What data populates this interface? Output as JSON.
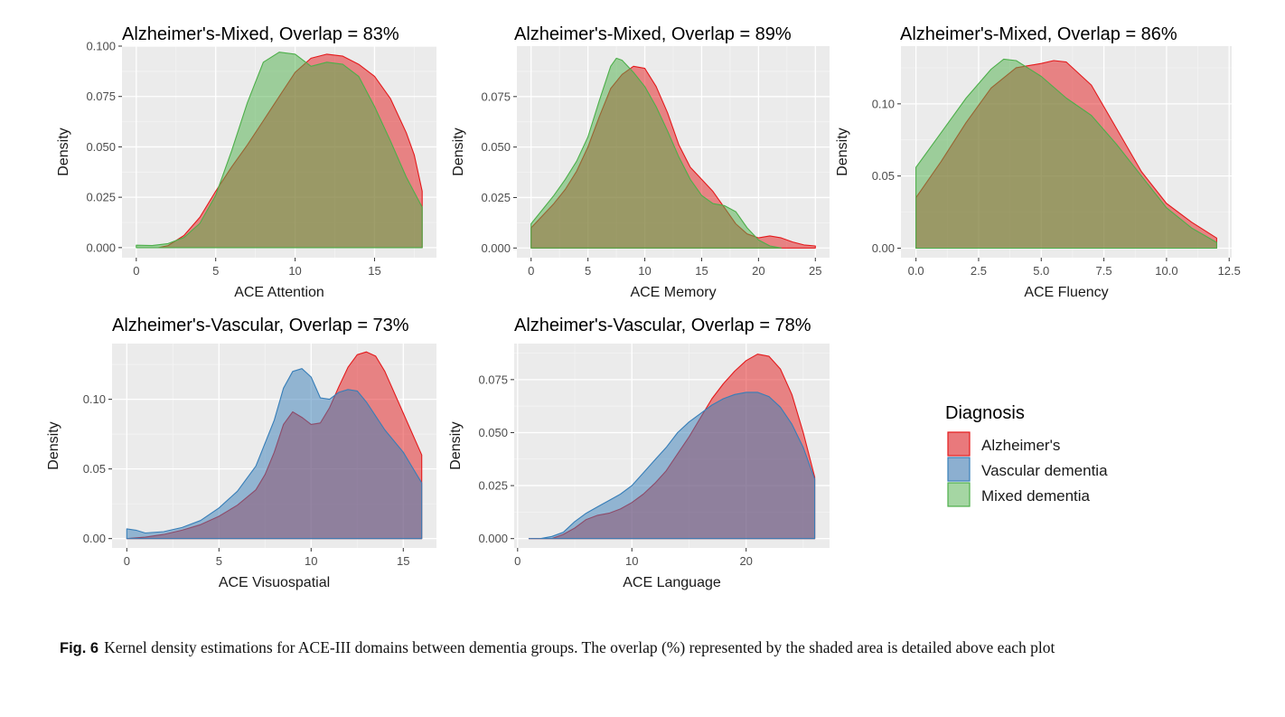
{
  "figure": {
    "caption_label": "Fig. 6",
    "caption_text": "Kernel density estimations for ACE-III domains between dementia groups. The overlap (%) represented by the shaded area is detailed above each plot"
  },
  "legend": {
    "title": "Diagnosis",
    "items": [
      {
        "label": "Alzheimer's",
        "fill": "#e9797c",
        "stroke": "#e41a1c"
      },
      {
        "label": "Vascular dementia",
        "fill": "#8cafd0",
        "stroke": "#377eb8"
      },
      {
        "label": "Mixed dementia",
        "fill": "#a5d6a3",
        "stroke": "#4daf4a"
      }
    ]
  },
  "colors": {
    "panel_bg": "#ebebeb",
    "grid_major": "#ffffff",
    "alz_fill": "#e41a1c",
    "alz_stroke": "#e41a1c",
    "vasc_fill": "#377eb8",
    "vasc_stroke": "#377eb8",
    "mixed_fill": "#4daf4a",
    "mixed_stroke": "#4daf4a"
  },
  "chart_data": [
    {
      "type": "area",
      "title": "Alzheimer's-Mixed, Overlap = 83%",
      "xlabel": "ACE Attention",
      "ylabel": "Density",
      "xlim": [
        -0.9,
        18.9
      ],
      "ylim": [
        -0.005,
        0.1
      ],
      "xticks": [
        0,
        5,
        10,
        15
      ],
      "xtick_labels": [
        "0",
        "5",
        "10",
        "15"
      ],
      "yticks": [
        0,
        0.025,
        0.05,
        0.075,
        0.1
      ],
      "ytick_labels": [
        "0.000",
        "0.025",
        "0.050",
        "0.075",
        "0.100"
      ],
      "grid": true,
      "series": [
        {
          "name": "Alzheimer's",
          "group": "alz",
          "x": [
            1.4,
            2,
            3,
            4,
            5,
            6,
            7,
            8,
            9,
            10,
            11,
            12,
            13,
            14,
            15,
            16,
            17,
            17.5,
            18
          ],
          "y": [
            0,
            0.001,
            0.006,
            0.015,
            0.028,
            0.04,
            0.051,
            0.063,
            0.075,
            0.087,
            0.094,
            0.096,
            0.095,
            0.091,
            0.085,
            0.074,
            0.057,
            0.046,
            0.028
          ]
        },
        {
          "name": "Mixed dementia",
          "group": "mixed",
          "x": [
            0,
            1,
            2,
            3,
            4,
            5,
            6,
            7,
            8,
            9,
            10,
            11,
            12,
            13,
            14,
            15,
            16,
            17,
            18
          ],
          "y": [
            0.0012,
            0.001,
            0.002,
            0.005,
            0.012,
            0.026,
            0.048,
            0.072,
            0.092,
            0.097,
            0.096,
            0.09,
            0.092,
            0.091,
            0.085,
            0.07,
            0.053,
            0.035,
            0.02
          ]
        }
      ]
    },
    {
      "type": "area",
      "title": "Alzheimer's-Mixed, Overlap = 89%",
      "xlabel": "ACE Memory",
      "ylabel": "Density",
      "xlim": [
        -1.25,
        26.25
      ],
      "ylim": [
        -0.0048,
        0.1
      ],
      "xticks": [
        0,
        5,
        10,
        15,
        20,
        25
      ],
      "xtick_labels": [
        "0",
        "5",
        "10",
        "15",
        "20",
        "25"
      ],
      "yticks": [
        0,
        0.025,
        0.05,
        0.075
      ],
      "ytick_labels": [
        "0.000",
        "0.025",
        "0.050",
        "0.075"
      ],
      "grid": true,
      "series": [
        {
          "name": "Alzheimer's",
          "group": "alz",
          "x": [
            0,
            1,
            2,
            3,
            4,
            5,
            6,
            7,
            8,
            9,
            10,
            11,
            12,
            13,
            14,
            15,
            16,
            17,
            18,
            19,
            20,
            21,
            22,
            23,
            24,
            25
          ],
          "y": [
            0.01,
            0.016,
            0.022,
            0.029,
            0.038,
            0.05,
            0.065,
            0.079,
            0.086,
            0.09,
            0.089,
            0.08,
            0.067,
            0.051,
            0.04,
            0.034,
            0.028,
            0.02,
            0.012,
            0.007,
            0.005,
            0.006,
            0.005,
            0.003,
            0.0015,
            0.001
          ]
        },
        {
          "name": "Mixed dementia",
          "group": "mixed",
          "x": [
            0,
            1,
            2,
            3,
            4,
            5,
            6,
            7,
            7.5,
            8,
            9,
            10,
            11,
            12,
            13,
            14,
            15,
            16,
            17,
            18,
            19,
            20,
            21,
            22
          ],
          "y": [
            0.012,
            0.019,
            0.026,
            0.034,
            0.043,
            0.055,
            0.073,
            0.09,
            0.094,
            0.093,
            0.087,
            0.08,
            0.07,
            0.058,
            0.045,
            0.034,
            0.026,
            0.022,
            0.021,
            0.018,
            0.01,
            0.004,
            0.001,
            0
          ]
        }
      ]
    },
    {
      "type": "area",
      "title": "Alzheimer's-Mixed, Overlap = 86%",
      "xlabel": "ACE Fluency",
      "ylabel": "Density",
      "xlim": [
        -0.6,
        12.6
      ],
      "ylim": [
        -0.0066,
        0.14
      ],
      "xticks": [
        0,
        2.5,
        5,
        7.5,
        10,
        12.5
      ],
      "xtick_labels": [
        "0.0",
        "2.5",
        "5.0",
        "7.5",
        "10.0",
        "12.5"
      ],
      "yticks": [
        0,
        0.05,
        0.1
      ],
      "ytick_labels": [
        "0.00",
        "0.05",
        "0.10"
      ],
      "grid": true,
      "series": [
        {
          "name": "Alzheimer's",
          "group": "alz",
          "x": [
            0,
            1,
            2,
            3,
            4,
            5,
            5.5,
            6,
            7,
            8,
            9,
            10,
            11,
            12
          ],
          "y": [
            0.035,
            0.06,
            0.087,
            0.111,
            0.125,
            0.128,
            0.13,
            0.129,
            0.113,
            0.083,
            0.053,
            0.031,
            0.018,
            0.007
          ]
        },
        {
          "name": "Mixed dementia",
          "group": "mixed",
          "x": [
            0,
            1,
            2,
            3,
            3.5,
            4,
            5,
            6,
            7,
            8,
            9,
            10,
            11,
            12
          ],
          "y": [
            0.056,
            0.08,
            0.104,
            0.124,
            0.131,
            0.13,
            0.119,
            0.104,
            0.092,
            0.072,
            0.05,
            0.028,
            0.014,
            0.004
          ]
        }
      ]
    },
    {
      "type": "area",
      "title": "Alzheimer's-Vascular, Overlap = 73%",
      "xlabel": "ACE Visuospatial",
      "ylabel": "Density",
      "xlim": [
        -0.8,
        16.8
      ],
      "ylim": [
        -0.0067,
        0.14
      ],
      "xticks": [
        0,
        5,
        10,
        15
      ],
      "xtick_labels": [
        "0",
        "5",
        "10",
        "15"
      ],
      "yticks": [
        0,
        0.05,
        0.1
      ],
      "ytick_labels": [
        "0.00",
        "0.05",
        "0.10"
      ],
      "grid": true,
      "series": [
        {
          "name": "Alzheimer's",
          "group": "alz",
          "x": [
            0,
            1,
            2,
            3,
            4,
            5,
            6,
            7,
            7.5,
            8,
            8.5,
            9,
            9.5,
            10,
            10.5,
            11,
            11.5,
            12,
            12.5,
            13,
            13.5,
            14,
            15,
            16
          ],
          "y": [
            0,
            0.001,
            0.003,
            0.006,
            0.01,
            0.016,
            0.024,
            0.035,
            0.046,
            0.062,
            0.082,
            0.091,
            0.087,
            0.082,
            0.083,
            0.094,
            0.109,
            0.123,
            0.132,
            0.134,
            0.131,
            0.12,
            0.09,
            0.06
          ]
        },
        {
          "name": "Vascular dementia",
          "group": "vasc",
          "x": [
            0,
            0.5,
            1,
            2,
            3,
            4,
            5,
            6,
            7,
            8,
            8.5,
            9,
            9.5,
            10,
            10.5,
            11,
            11.5,
            12,
            12.5,
            13,
            14,
            15,
            16
          ],
          "y": [
            0.007,
            0.006,
            0.004,
            0.005,
            0.008,
            0.013,
            0.022,
            0.034,
            0.052,
            0.085,
            0.108,
            0.12,
            0.122,
            0.116,
            0.101,
            0.1,
            0.105,
            0.107,
            0.106,
            0.098,
            0.078,
            0.062,
            0.04
          ]
        }
      ]
    },
    {
      "type": "area",
      "title": "Alzheimer's-Vascular, Overlap = 78%",
      "xlabel": "ACE Language",
      "ylabel": "Density",
      "xlim": [
        -0.3,
        27.3
      ],
      "ylim": [
        -0.0044,
        0.092
      ],
      "xticks": [
        0,
        10,
        20
      ],
      "xtick_labels": [
        "0",
        "10",
        "20"
      ],
      "yticks": [
        0,
        0.025,
        0.05,
        0.075
      ],
      "ytick_labels": [
        "0.000",
        "0.025",
        "0.050",
        "0.075"
      ],
      "grid": true,
      "series": [
        {
          "name": "Alzheimer's",
          "group": "alz",
          "x": [
            1,
            2,
            3,
            4,
            5,
            6,
            7,
            8,
            9,
            10,
            11,
            12,
            13,
            14,
            15,
            16,
            17,
            18,
            19,
            20,
            21,
            22,
            23,
            24,
            25,
            26
          ],
          "y": [
            0,
            0,
            0,
            0.002,
            0.005,
            0.009,
            0.011,
            0.012,
            0.014,
            0.017,
            0.021,
            0.026,
            0.032,
            0.04,
            0.048,
            0.057,
            0.066,
            0.073,
            0.079,
            0.084,
            0.087,
            0.086,
            0.08,
            0.068,
            0.05,
            0.029
          ]
        },
        {
          "name": "Vascular dementia",
          "group": "vasc",
          "x": [
            1,
            2,
            3,
            4,
            5,
            6,
            7,
            8,
            9,
            10,
            11,
            12,
            13,
            14,
            15,
            16,
            17,
            18,
            19,
            20,
            21,
            22,
            23,
            24,
            25,
            26
          ],
          "y": [
            0,
            0,
            0.001,
            0.003,
            0.008,
            0.012,
            0.015,
            0.018,
            0.021,
            0.025,
            0.031,
            0.037,
            0.043,
            0.05,
            0.055,
            0.059,
            0.063,
            0.066,
            0.068,
            0.069,
            0.069,
            0.067,
            0.062,
            0.054,
            0.043,
            0.028
          ]
        }
      ]
    }
  ]
}
